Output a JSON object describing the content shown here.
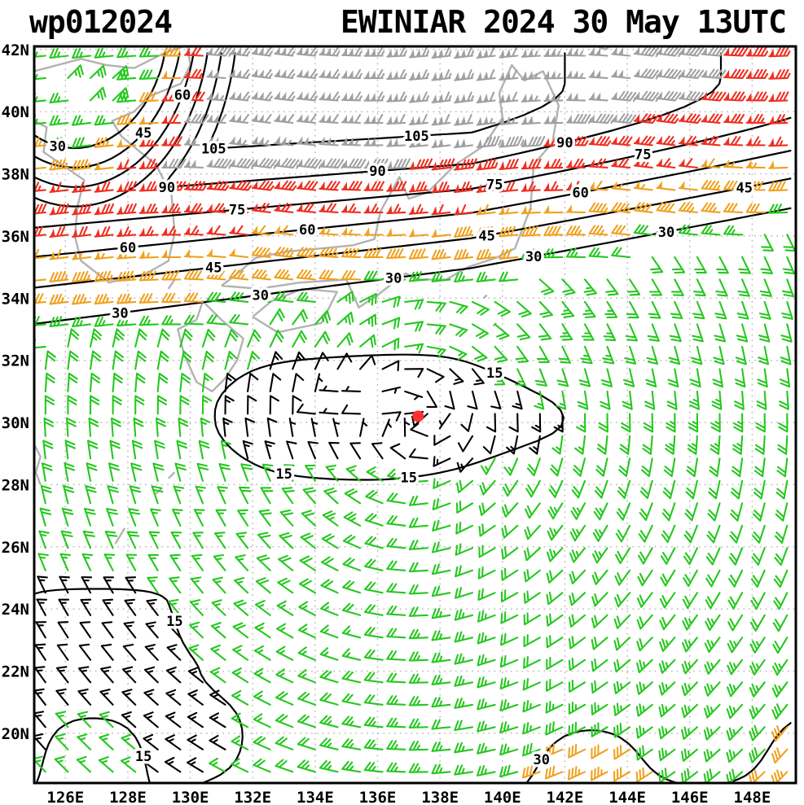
{
  "title": {
    "left": "wp012024",
    "right": "EWINIAR 2024 30 May 13UTC"
  },
  "chart_data": {
    "type": "wind-barb-analysis-map",
    "storm_id": "wp012024",
    "storm_name": "EWINIAR",
    "valid_time": "2024 30 May 13UTC",
    "storm_center": {
      "lon": 137.3,
      "lat": 30.2,
      "color": "#ff3030"
    },
    "lon_range": [
      125.0,
      149.4
    ],
    "lat_range": [
      18.4,
      42.1
    ],
    "lon_ticks": {
      "values": [
        126,
        128,
        130,
        132,
        134,
        136,
        138,
        140,
        142,
        144,
        146,
        148
      ],
      "labels": [
        "126E",
        "128E",
        "130E",
        "132E",
        "134E",
        "136E",
        "138E",
        "140E",
        "142E",
        "144E",
        "146E",
        "148E"
      ]
    },
    "lat_ticks": {
      "values": [
        20,
        22,
        24,
        26,
        28,
        30,
        32,
        34,
        36,
        38,
        40,
        42
      ],
      "labels": [
        "20N",
        "22N",
        "24N",
        "26N",
        "28N",
        "30N",
        "32N",
        "34N",
        "36N",
        "38N",
        "40N",
        "42N"
      ]
    },
    "isotach_levels_kt": [
      15,
      30,
      45,
      60,
      75,
      90,
      105
    ],
    "contour_label_counts": {
      "15": 11,
      "30": 8,
      "45": 5,
      "60": 5,
      "75": 5,
      "90": 3,
      "105": 2
    },
    "wind_speed_color_scale": [
      {
        "range_kt": "<15",
        "max_kt": 15,
        "color": "#000000"
      },
      {
        "range_kt": "15-30",
        "max_kt": 30,
        "color": "#25c81e"
      },
      {
        "range_kt": "30-60",
        "max_kt": 60,
        "color": "#f0a11e"
      },
      {
        "range_kt": "60-90",
        "max_kt": 90,
        "color": "#ee2f21"
      },
      {
        "range_kt": ">=90",
        "max_kt": null,
        "color": "#a0a0a0"
      }
    ],
    "barb_convention": {
      "half_barb_kt": 5,
      "full_barb_kt": 10,
      "pennant_kt": 50
    },
    "style": {
      "coast_color": "#b2b2b2",
      "grid_color": "#bcbcbc",
      "contour_color": "#000000",
      "frame_color": "#000000"
    },
    "wind_field_model": {
      "comment": "procedural approximation of the plotted isotach / wind-barb field",
      "center": [
        137.3,
        30.2
      ],
      "vortex": {
        "ellipse_shift": 1.5,
        "aniso": 2.75,
        "inner_slope": 5,
        "ramp_base": 4,
        "ramp_gain": 9,
        "ring_cap": 21,
        "far_start": 8,
        "far_gain": 2.5,
        "far_cap": 33,
        "sw_damp": 0.4,
        "outflow_max": 8,
        "outflow_decay": 3.2,
        "mod_amp": 0.14
      },
      "jet": {
        "core_lat_base": 40.2,
        "core_lat_slope": 0.04,
        "amp": 114,
        "amp_east_decay_start": 139,
        "amp_east_decay": 3,
        "sigma_south_base": 4.3,
        "sigma_south_slope": 0.054,
        "cap": 118,
        "merid_wave_amp": 0.12
      },
      "col": {
        "lon": 126.3,
        "lat": 43.2,
        "x_scale": 1.15,
        "y_scale": 0.8,
        "floor": 26,
        "slope": 30,
        "radius": 2.5
      },
      "bumps": [
        {
          "lon": 133.9,
          "lat": 30.35,
          "amp": 9,
          "sx": 0.7,
          "sy": 0.35
        },
        {
          "lon": 135.7,
          "lat": 30.5,
          "amp": 13,
          "sx": 0.5,
          "sy": 0.3
        }
      ]
    },
    "coastlines": [
      [
        [
          125.0,
          39.7
        ],
        [
          125.4,
          39.5
        ],
        [
          125.3,
          38.7
        ],
        [
          126.6,
          37.8
        ],
        [
          126.4,
          37.0
        ],
        [
          126.3,
          36.0
        ],
        [
          126.5,
          35.2
        ],
        [
          127.4,
          34.5
        ],
        [
          128.6,
          34.8
        ],
        [
          129.3,
          35.2
        ],
        [
          129.5,
          36.1
        ],
        [
          129.4,
          37.3
        ],
        [
          128.9,
          38.3
        ],
        [
          128.4,
          38.7
        ],
        [
          127.8,
          39.2
        ],
        [
          127.5,
          39.7
        ],
        [
          128.2,
          40.0
        ],
        [
          128.7,
          40.5
        ],
        [
          129.7,
          40.9
        ],
        [
          130.0,
          41.5
        ],
        [
          129.9,
          42.2
        ],
        [
          130.6,
          42.4
        ],
        [
          131.8,
          42.9
        ],
        [
          133.5,
          42.8
        ],
        [
          135.3,
          43.2
        ]
      ],
      [
        [
          125.0,
          41.3
        ],
        [
          126.5,
          41.7
        ],
        [
          127.3,
          41.5
        ],
        [
          128.2,
          41.4
        ],
        [
          129.2,
          41.9
        ],
        [
          130.4,
          42.3
        ]
      ],
      [
        [
          125.0,
          42.6
        ],
        [
          126.3,
          42.9
        ],
        [
          127.8,
          42.7
        ],
        [
          129.0,
          43.0
        ]
      ],
      [
        [
          130.2,
          33.3
        ],
        [
          129.6,
          33.0
        ],
        [
          129.8,
          32.2
        ],
        [
          130.2,
          31.3
        ],
        [
          130.7,
          31.0
        ],
        [
          131.1,
          31.4
        ],
        [
          131.5,
          32.0
        ],
        [
          131.7,
          32.7
        ],
        [
          131.0,
          33.3
        ],
        [
          130.4,
          33.9
        ],
        [
          130.2,
          33.3
        ]
      ],
      [
        [
          132.0,
          33.4
        ],
        [
          132.8,
          32.9
        ],
        [
          134.2,
          33.2
        ],
        [
          134.7,
          34.2
        ],
        [
          133.6,
          34.3
        ],
        [
          132.6,
          33.9
        ],
        [
          132.0,
          33.4
        ]
      ],
      [
        [
          131.0,
          34.4
        ],
        [
          132.2,
          34.3
        ],
        [
          133.5,
          34.5
        ],
        [
          135.0,
          34.6
        ],
        [
          135.4,
          33.7
        ],
        [
          136.0,
          34.1
        ],
        [
          136.9,
          34.8
        ],
        [
          137.3,
          34.6
        ],
        [
          138.2,
          34.6
        ],
        [
          138.9,
          35.0
        ],
        [
          139.8,
          35.3
        ],
        [
          140.4,
          35.6
        ],
        [
          140.9,
          36.9
        ],
        [
          141.0,
          38.3
        ],
        [
          141.6,
          39.0
        ],
        [
          141.8,
          40.2
        ],
        [
          141.3,
          41.3
        ],
        [
          140.7,
          41.0
        ],
        [
          140.3,
          41.5
        ],
        [
          139.9,
          40.6
        ],
        [
          140.0,
          39.8
        ],
        [
          139.4,
          38.9
        ],
        [
          138.5,
          38.3
        ],
        [
          137.6,
          37.4
        ],
        [
          137.0,
          37.2
        ],
        [
          136.7,
          37.9
        ],
        [
          136.1,
          36.8
        ],
        [
          135.9,
          35.9
        ],
        [
          135.2,
          35.7
        ],
        [
          134.2,
          35.6
        ],
        [
          133.1,
          35.5
        ],
        [
          132.1,
          35.3
        ],
        [
          131.4,
          34.7
        ],
        [
          131.0,
          34.4
        ]
      ],
      [
        [
          140.4,
          42.1
        ],
        [
          141.5,
          42.5
        ],
        [
          142.5,
          42.3
        ],
        [
          143.3,
          42.0
        ],
        [
          144.5,
          42.9
        ],
        [
          145.8,
          43.1
        ]
      ],
      [
        [
          129.3,
          34.3
        ],
        [
          129.5,
          34.6
        ]
      ],
      [
        [
          127.6,
          26.1
        ],
        [
          127.9,
          26.6
        ]
      ],
      [
        [
          128.9,
          27.7
        ],
        [
          129.1,
          27.9
        ]
      ],
      [
        [
          129.3,
          28.2
        ],
        [
          129.5,
          28.4
        ]
      ],
      [
        [
          139.4,
          34.0
        ],
        [
          139.5,
          34.1
        ]
      ],
      [
        [
          139.7,
          33.1
        ],
        [
          139.8,
          33.2
        ]
      ],
      [
        [
          125.0,
          29.3
        ],
        [
          125.2,
          28.9
        ],
        [
          125.05,
          28.4
        ],
        [
          125.2,
          28.0
        ]
      ]
    ]
  }
}
